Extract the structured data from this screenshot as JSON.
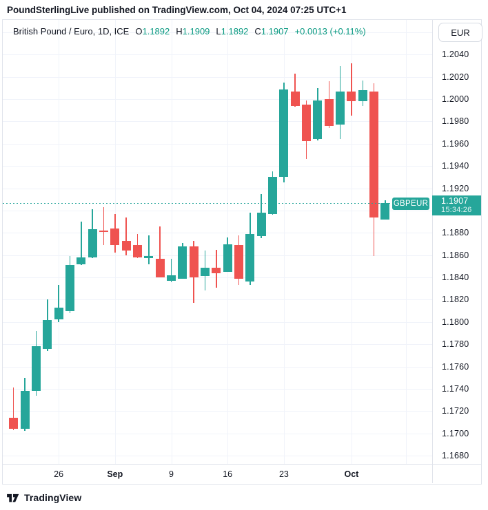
{
  "attribution": "PoundSterlingLive published on TradingView.com, Oct 04, 2024 07:25 UTC+1",
  "legend": {
    "title": "British Pound / Euro, 1D, ICE",
    "open_label": "O",
    "open": "1.1892",
    "high_label": "H",
    "high": "1.1909",
    "low_label": "L",
    "low": "1.1892",
    "close_label": "C",
    "close": "1.1907",
    "change": "+0.0013 (+0.11%)"
  },
  "currency_button_label": "EUR",
  "price_axis": {
    "labels": [
      "1.2040",
      "1.2020",
      "1.2000",
      "1.1980",
      "1.1960",
      "1.1940",
      "1.1920",
      "1.1880",
      "1.1860",
      "1.1840",
      "1.1820",
      "1.1800",
      "1.1780",
      "1.1760",
      "1.1740",
      "1.1720",
      "1.1700",
      "1.1680"
    ],
    "badge": {
      "price": "1.1907",
      "time": "15:34:26"
    }
  },
  "time_axis": {
    "labels": [
      {
        "text": "26",
        "candle_index": 4,
        "bold": false
      },
      {
        "text": "Sep",
        "candle_index": 9,
        "bold": true
      },
      {
        "text": "9",
        "candle_index": 14,
        "bold": false
      },
      {
        "text": "16",
        "candle_index": 19,
        "bold": false
      },
      {
        "text": "23",
        "candle_index": 24,
        "bold": false
      },
      {
        "text": "Oct",
        "candle_index": 30,
        "bold": true
      }
    ]
  },
  "price_line": {
    "label": "GBPEUR",
    "price": 1.1907
  },
  "footer": {
    "brand": "TradingView"
  },
  "colors": {
    "up": "#26a69a",
    "down": "#ef5350",
    "accent_text": "#089981",
    "text": "#131722",
    "grid": "#f0f3fa",
    "border": "#e0e3eb"
  },
  "chart_data": {
    "type": "candlestick",
    "title": "British Pound / Euro, 1D, ICE",
    "symbol": "GBPEUR",
    "interval": "1D",
    "exchange": "ICE",
    "last_price": 1.1907,
    "y_axis": {
      "grid_top": 1.206,
      "grid_bottom": 1.168,
      "tick_step": 0.002,
      "label_top": 1.204
    },
    "candles": [
      {
        "date": "Aug 20",
        "o": 1.1714,
        "h": 1.1741,
        "l": 1.1703,
        "c": 1.1704
      },
      {
        "date": "Aug 21",
        "o": 1.1704,
        "h": 1.175,
        "l": 1.1702,
        "c": 1.1738
      },
      {
        "date": "Aug 22",
        "o": 1.1738,
        "h": 1.1792,
        "l": 1.1734,
        "c": 1.1778
      },
      {
        "date": "Aug 23",
        "o": 1.1776,
        "h": 1.182,
        "l": 1.1774,
        "c": 1.1802
      },
      {
        "date": "Aug 26",
        "o": 1.1802,
        "h": 1.1833,
        "l": 1.18,
        "c": 1.1813
      },
      {
        "date": "Aug 27",
        "o": 1.181,
        "h": 1.1859,
        "l": 1.1808,
        "c": 1.1851
      },
      {
        "date": "Aug 28",
        "o": 1.1852,
        "h": 1.189,
        "l": 1.1851,
        "c": 1.1858
      },
      {
        "date": "Aug 29",
        "o": 1.1858,
        "h": 1.1901,
        "l": 1.1857,
        "c": 1.1883
      },
      {
        "date": "Aug 30",
        "o": 1.1882,
        "h": 1.1903,
        "l": 1.1869,
        "c": 1.1881
      },
      {
        "date": "Sep 2",
        "o": 1.1884,
        "h": 1.1897,
        "l": 1.1862,
        "c": 1.1869
      },
      {
        "date": "Sep 3",
        "o": 1.1873,
        "h": 1.1894,
        "l": 1.186,
        "c": 1.1864
      },
      {
        "date": "Sep 4",
        "o": 1.1869,
        "h": 1.1879,
        "l": 1.1857,
        "c": 1.1858
      },
      {
        "date": "Sep 5",
        "o": 1.1857,
        "h": 1.1878,
        "l": 1.1852,
        "c": 1.1859
      },
      {
        "date": "Sep 6",
        "o": 1.1857,
        "h": 1.1886,
        "l": 1.184,
        "c": 1.184
      },
      {
        "date": "Sep 9",
        "o": 1.1837,
        "h": 1.1857,
        "l": 1.1836,
        "c": 1.1842
      },
      {
        "date": "Sep 10",
        "o": 1.1839,
        "h": 1.1871,
        "l": 1.1839,
        "c": 1.1868
      },
      {
        "date": "Sep 11",
        "o": 1.1868,
        "h": 1.1873,
        "l": 1.1817,
        "c": 1.184
      },
      {
        "date": "Sep 12",
        "o": 1.1841,
        "h": 1.1864,
        "l": 1.1828,
        "c": 1.1849
      },
      {
        "date": "Sep 13",
        "o": 1.1849,
        "h": 1.1865,
        "l": 1.1831,
        "c": 1.1844
      },
      {
        "date": "Sep 16",
        "o": 1.1845,
        "h": 1.1876,
        "l": 1.1845,
        "c": 1.187
      },
      {
        "date": "Sep 17",
        "o": 1.1869,
        "h": 1.1878,
        "l": 1.1833,
        "c": 1.1839
      },
      {
        "date": "Sep 18",
        "o": 1.1836,
        "h": 1.1898,
        "l": 1.1833,
        "c": 1.1879
      },
      {
        "date": "Sep 19",
        "o": 1.1877,
        "h": 1.1915,
        "l": 1.1875,
        "c": 1.1898
      },
      {
        "date": "Sep 20",
        "o": 1.1897,
        "h": 1.1935,
        "l": 1.1896,
        "c": 1.193
      },
      {
        "date": "Sep 23",
        "o": 1.193,
        "h": 1.2015,
        "l": 1.1925,
        "c": 1.2009
      },
      {
        "date": "Sep 24",
        "o": 1.2007,
        "h": 1.2023,
        "l": 1.1993,
        "c": 1.1994
      },
      {
        "date": "Sep 25",
        "o": 1.1995,
        "h": 1.1999,
        "l": 1.1946,
        "c": 1.1962
      },
      {
        "date": "Sep 26",
        "o": 1.1964,
        "h": 1.201,
        "l": 1.1963,
        "c": 1.1999
      },
      {
        "date": "Sep 27",
        "o": 1.2,
        "h": 1.2016,
        "l": 1.1974,
        "c": 1.1976
      },
      {
        "date": "Sep 30",
        "o": 1.1977,
        "h": 1.203,
        "l": 1.1964,
        "c": 1.2007
      },
      {
        "date": "Oct 1",
        "o": 1.2007,
        "h": 1.2032,
        "l": 1.1985,
        "c": 1.1998
      },
      {
        "date": "Oct 2",
        "o": 1.1998,
        "h": 1.2017,
        "l": 1.1994,
        "c": 1.2008
      },
      {
        "date": "Oct 3",
        "o": 1.2007,
        "h": 1.2014,
        "l": 1.1859,
        "c": 1.1894
      },
      {
        "date": "Oct 4",
        "o": 1.1892,
        "h": 1.1909,
        "l": 1.1892,
        "c": 1.1907
      }
    ]
  }
}
